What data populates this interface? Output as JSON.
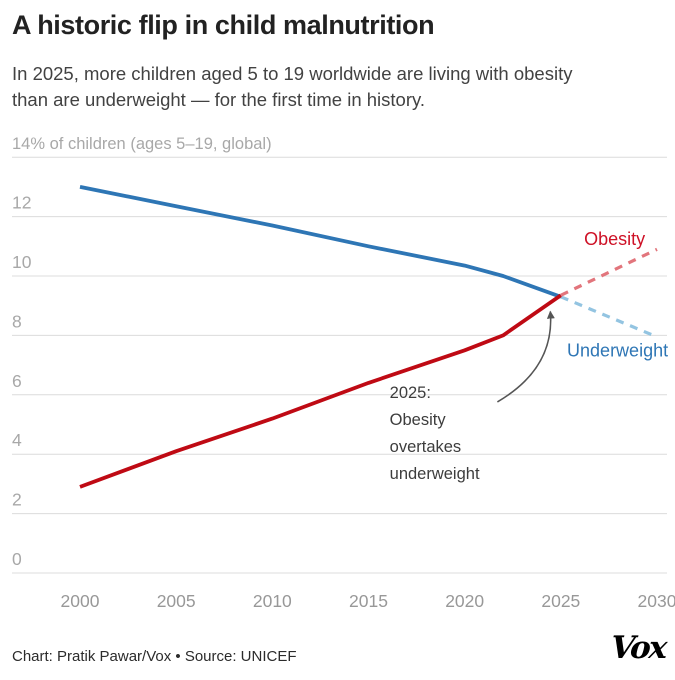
{
  "header": {
    "title": "A historic flip in child malnutrition",
    "subtitle_lines": [
      "In 2025, more children aged 5 to 19 worldwide are living with obesity",
      "than are underweight — for the first time in history."
    ]
  },
  "chart_data": {
    "type": "line",
    "axis_title": "14% of children (ages 5–19, global)",
    "xlabel": "",
    "ylabel": "% of children (ages 5–19, global)",
    "xlim": [
      2000,
      2030
    ],
    "ylim": [
      0,
      14
    ],
    "grid": true,
    "legend_position": "inline-labels",
    "grid_color": "#dcdcdc",
    "y_gridlines": [
      0,
      2,
      4,
      6,
      8,
      10,
      12,
      14
    ],
    "y_tick_labels": [
      "0",
      "2",
      "4",
      "6",
      "8",
      "10",
      "12"
    ],
    "x_tick_labels": [
      "2000",
      "2005",
      "2010",
      "2015",
      "2020",
      "2025",
      "2030"
    ],
    "x_ticks": [
      2000,
      2005,
      2010,
      2015,
      2020,
      2025,
      2030
    ],
    "series": [
      {
        "name": "Underweight",
        "style": "solid",
        "color": "#2e76b5",
        "points": [
          [
            2000,
            13.0
          ],
          [
            2005,
            12.35
          ],
          [
            2010,
            11.7
          ],
          [
            2015,
            11.0
          ],
          [
            2020,
            10.35
          ],
          [
            2022,
            10.0
          ],
          [
            2025,
            9.3
          ]
        ]
      },
      {
        "name": "Underweight (projected)",
        "style": "dashed",
        "color": "#93c4e1",
        "points": [
          [
            2025,
            9.3
          ],
          [
            2030,
            7.95
          ]
        ]
      },
      {
        "name": "Obesity",
        "style": "solid",
        "color": "#bf0a14",
        "points": [
          [
            2000,
            2.9
          ],
          [
            2005,
            4.1
          ],
          [
            2010,
            5.2
          ],
          [
            2015,
            6.4
          ],
          [
            2020,
            7.5
          ],
          [
            2022,
            8.0
          ],
          [
            2025,
            9.35
          ]
        ]
      },
      {
        "name": "Obesity (projected)",
        "style": "dashed",
        "color": "#e2757c",
        "points": [
          [
            2025,
            9.35
          ],
          [
            2030,
            10.9
          ]
        ]
      }
    ],
    "series_labels": [
      {
        "text": "Obesity",
        "color": "#ce1126",
        "x": 2027.8,
        "y": 11.25
      },
      {
        "text": "Underweight",
        "color": "#2e76b5",
        "x": 2027.95,
        "y": 7.5
      }
    ],
    "annotation": {
      "lines": [
        "2025:",
        "Obesity",
        "overtakes",
        "underweight"
      ],
      "x": 2016.1,
      "y": 5.89,
      "color": "#3d3d3d",
      "arrow": {
        "from": [
          2021.7,
          5.76
        ],
        "ctrl": [
          2024.7,
          6.9
        ],
        "to": [
          2024.45,
          8.8
        ],
        "color": "#555555"
      }
    }
  },
  "footer": {
    "credit": "Chart: Pratik Pawar/Vox • Source: UNICEF",
    "logo": "Vox"
  }
}
